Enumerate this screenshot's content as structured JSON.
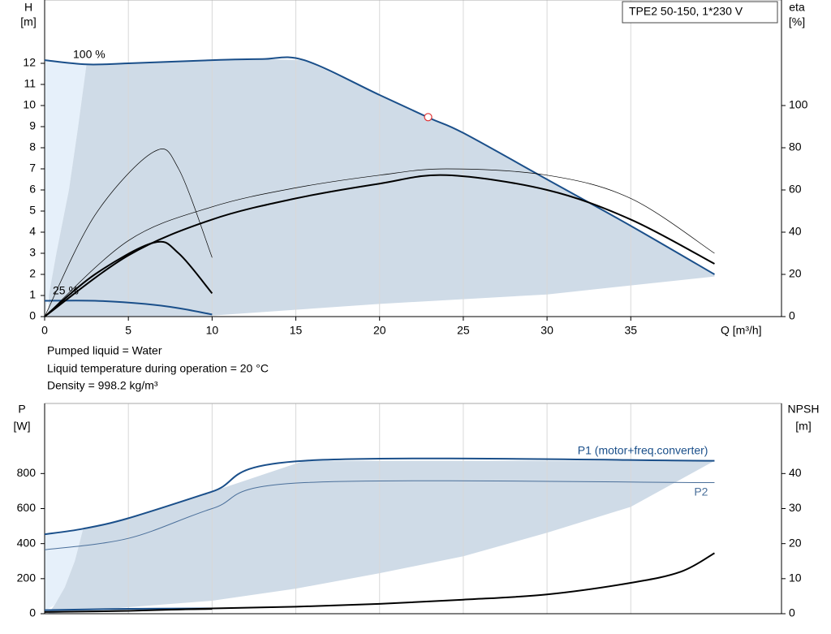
{
  "notes": [
    "Pumped liquid = Water",
    "Liquid temperature during operation = 20 °C",
    "Density = 998.2 kg/m³"
  ],
  "chart_data": [
    {
      "type": "line",
      "title": "TPE2 50-150, 1*230 V",
      "ylabel": [
        "H",
        "[m]"
      ],
      "y2label": [
        "eta",
        "[%]"
      ],
      "xlabel": "Q [m³/h]",
      "xlim": [
        0,
        44
      ],
      "xticks": [
        0,
        5,
        10,
        15,
        20,
        25,
        30,
        35
      ],
      "ylim": [
        0,
        15
      ],
      "yticks": [
        0,
        1,
        2,
        3,
        4,
        5,
        6,
        7,
        8,
        9,
        10,
        11,
        12
      ],
      "y2lim": [
        0,
        150
      ],
      "y2ticks": [
        0,
        20,
        40,
        60,
        80,
        100
      ],
      "grid": true,
      "annotations": [
        "100 %",
        "25 %"
      ],
      "regions": [
        {
          "color": "#e6f0fa",
          "x": [
            0,
            2.5,
            2,
            1.45,
            0.7,
            0.25,
            0
          ],
          "y": [
            12.15,
            11.95,
            9,
            6,
            3,
            1,
            0
          ]
        },
        {
          "color": "#cfdbe7",
          "x": [
            2.5,
            5,
            10,
            13,
            15.5,
            20,
            25,
            30,
            35,
            40,
            40,
            30,
            20,
            10,
            10,
            0.2,
            0.25,
            0.7,
            1.45,
            2
          ],
          "y": [
            11.95,
            12,
            12.15,
            12.2,
            12.15,
            10.5,
            8.7,
            6.5,
            4.3,
            2,
            1.9,
            1.05,
            0.6,
            0.05,
            0,
            0,
            1,
            3,
            6,
            9
          ]
        }
      ],
      "series": [
        {
          "color": "#1a4f8a",
          "width": 2,
          "x": [
            0,
            2.5,
            5,
            10,
            13,
            15.5,
            20,
            23,
            25,
            30,
            35,
            40
          ],
          "values": [
            12.15,
            11.95,
            12,
            12.15,
            12.2,
            12.15,
            10.5,
            9.4,
            8.7,
            6.5,
            4.3,
            2
          ]
        },
        {
          "color": "#1a4f8a",
          "width": 2,
          "x": [
            0,
            3,
            6,
            8,
            10
          ],
          "values": [
            0.75,
            0.75,
            0.6,
            0.4,
            0.1
          ]
        },
        {
          "color": "#000000",
          "width": 2,
          "axis": "y2",
          "x": [
            0,
            5,
            10,
            15,
            20,
            24,
            30,
            35,
            40
          ],
          "values": [
            0,
            29,
            46,
            56,
            63,
            67,
            60,
            46,
            25
          ]
        },
        {
          "color": "#000000",
          "width": 2,
          "axis": "y2",
          "x": [
            0,
            3,
            6.5,
            8,
            10
          ],
          "values": [
            0,
            20,
            35,
            30,
            11
          ]
        },
        {
          "color": "#000000",
          "width": 0.7,
          "axis": "y2",
          "x": [
            0,
            5,
            10,
            15,
            20,
            24,
            30,
            35,
            40
          ],
          "values": [
            0,
            36,
            52,
            61,
            67,
            70,
            67,
            56,
            30
          ]
        },
        {
          "color": "#000000",
          "width": 0.7,
          "axis": "y2",
          "x": [
            0,
            3,
            6.5,
            8,
            10
          ],
          "values": [
            0,
            48,
            78,
            70,
            28
          ]
        }
      ],
      "point": {
        "x": 22.9,
        "y": 9.45,
        "color": "#e03030"
      }
    },
    {
      "type": "line",
      "ylabel": [
        "P",
        "[W]"
      ],
      "y2label": [
        "NPSH",
        "[m]"
      ],
      "xlim": [
        0,
        44
      ],
      "ylim": [
        0,
        1200
      ],
      "yticks": [
        0,
        200,
        400,
        600,
        800
      ],
      "y2lim": [
        0,
        60
      ],
      "y2ticks": [
        0,
        10,
        20,
        30,
        40
      ],
      "grid": true,
      "regions": [
        {
          "color": "#e6f0fa",
          "x": [
            0,
            2.3,
            1.8,
            1.2,
            0.6,
            0
          ],
          "y": [
            453,
            485,
            300,
            150,
            50,
            15
          ]
        },
        {
          "color": "#cfdbe7",
          "x": [
            2.3,
            5,
            10,
            15.5,
            40,
            35,
            30,
            25,
            20,
            15,
            10,
            5,
            0.2,
            0.6,
            1.2,
            1.8
          ],
          "y": [
            485,
            545,
            697,
            873,
            873,
            610,
            462,
            328,
            231,
            143,
            74,
            37,
            0,
            50,
            150,
            300
          ]
        }
      ],
      "series": [
        {
          "name": "P1 (motor+freq.converter)",
          "color": "#1a4f8a",
          "width": 2,
          "x": [
            0,
            2.3,
            5,
            10,
            15.5,
            40
          ],
          "values": [
            453,
            485,
            545,
            697,
            873,
            873
          ]
        },
        {
          "name": "P2",
          "color": "#4a6f9a",
          "width": 1,
          "x": [
            0,
            5,
            10,
            15.5,
            40
          ],
          "values": [
            365,
            430,
            600,
            748,
            748
          ]
        },
        {
          "color": "#1a4f8a",
          "width": 2,
          "x": [
            0,
            5,
            10
          ],
          "values": [
            20,
            28,
            30
          ]
        },
        {
          "color": "#000000",
          "width": 1,
          "x": [
            0,
            5,
            10
          ],
          "values": [
            10,
            18,
            25
          ]
        },
        {
          "color": "#000000",
          "width": 2,
          "axis": "y2",
          "x": [
            0,
            5,
            10,
            15,
            20,
            25,
            30,
            35,
            38,
            40
          ],
          "values": [
            0.5,
            0.8,
            1.5,
            2,
            2.8,
            4,
            5.5,
            8.8,
            12,
            17.3
          ]
        }
      ]
    }
  ]
}
